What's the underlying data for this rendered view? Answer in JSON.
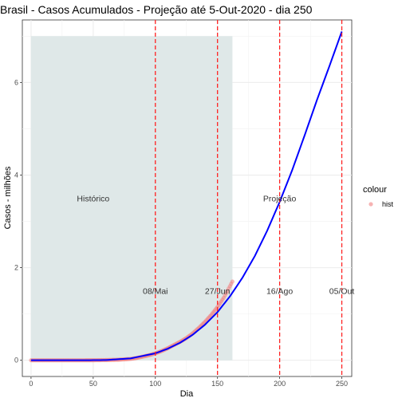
{
  "chart_data": {
    "type": "line",
    "title": "Brasil - Casos Acumulados - Projeção até 5-Out-2020 - dia 250",
    "xlabel": "Dia",
    "ylabel": "Casos - milhões",
    "xlim": [
      -7,
      258
    ],
    "ylim": [
      -0.35,
      7.35
    ],
    "x_ticks": [
      0,
      50,
      100,
      150,
      200,
      250
    ],
    "y_ticks": [
      0,
      2,
      4,
      6
    ],
    "grid": true,
    "shaded_region": {
      "x": [
        0,
        162
      ],
      "y": [
        0,
        7
      ],
      "color": "#dfe8e8"
    },
    "vertical_lines": [
      {
        "x": 100,
        "label": "08/Mai"
      },
      {
        "x": 150,
        "label": "27/Jun"
      },
      {
        "x": 200,
        "label": "16/Ago"
      },
      {
        "x": 250,
        "label": "05/Out"
      }
    ],
    "annotations": [
      {
        "text": "Histórico",
        "x": 50,
        "y": 3.5
      },
      {
        "text": "Projeção",
        "x": 200,
        "y": 3.5
      }
    ],
    "series": [
      {
        "kind": "points",
        "color": "#f08080",
        "x": [
          0,
          10,
          20,
          30,
          40,
          50,
          60,
          70,
          80,
          85,
          90,
          95,
          100,
          105,
          110,
          115,
          120,
          125,
          130,
          135,
          140,
          145,
          150,
          155,
          160,
          162
        ],
        "y": [
          0,
          0,
          0,
          0,
          0,
          0.001,
          0.005,
          0.012,
          0.03,
          0.05,
          0.08,
          0.11,
          0.15,
          0.2,
          0.26,
          0.33,
          0.4,
          0.48,
          0.58,
          0.7,
          0.83,
          0.98,
          1.15,
          1.35,
          1.6,
          1.7
        ]
      },
      {
        "kind": "line",
        "color": "#0000ff",
        "x": [
          0,
          20,
          40,
          60,
          80,
          100,
          110,
          120,
          130,
          140,
          150,
          160,
          170,
          180,
          190,
          200,
          210,
          220,
          230,
          240,
          250
        ],
        "y": [
          0,
          0,
          0,
          0.005,
          0.04,
          0.15,
          0.25,
          0.38,
          0.55,
          0.77,
          1.04,
          1.38,
          1.78,
          2.25,
          2.8,
          3.42,
          4.1,
          4.85,
          5.62,
          6.35,
          7.1
        ]
      }
    ],
    "legend": {
      "title": "colour",
      "entries": [
        {
          "label": "hist",
          "color": "#f08080"
        }
      ],
      "placement": "right"
    }
  }
}
